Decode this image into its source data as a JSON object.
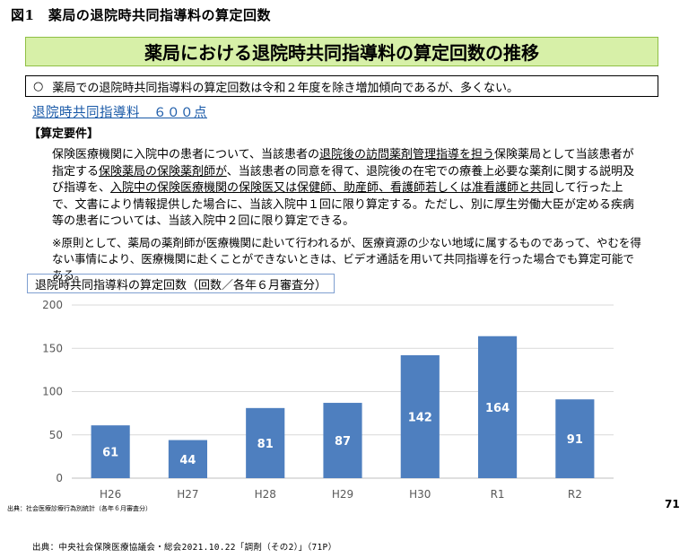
{
  "figure_caption": "図1　薬局の退院時共同指導料の算定回数",
  "slide_title": "薬局における退院時共同指導料の算定回数の推移",
  "summary": {
    "mark": "○",
    "text": "薬局での退院時共同指導料の算定回数は令和２年度を除き増加傾向であるが、多くない。"
  },
  "fee_title": "退院時共同指導料　６００点",
  "requirements": {
    "heading": "【算定要件】",
    "body_segments": [
      {
        "text": "保険医療機関に入院中の患者について、当該患者の",
        "u": false
      },
      {
        "text": "退院後の訪問薬剤管理指導を担う",
        "u": true
      },
      {
        "text": "保険薬局として当該患者が指定する",
        "u": false
      },
      {
        "text": "保険薬局の保険薬剤師が",
        "u": true
      },
      {
        "text": "、当該患者の同意を得て、退院後の在宅での療養上必要な薬剤に関する説明及び指導を、",
        "u": false
      },
      {
        "text": "入院中の保険医療機関の保険医又は保健師、助産師、看護師若しくは准看護師と共同",
        "u": true
      },
      {
        "text": "して行った上で、文書により情報提供した場合に、当該入院中１回に限り算定する。ただし、別に厚生労働大臣が定める疾病等の患者については、当該入院中２回に限り算定できる。",
        "u": false
      }
    ],
    "note": "※原則として、薬局の薬剤師が医療機関に赴いて行われるが、医療資源の少ない地域に属するものであって、やむを得ない事情により、医療機関に赴くことができないときは、ビデオ通話を用いて共同指導を行った場合でも算定可能である。"
  },
  "chart_label": "退院時共同指導料の算定回数（回数／各年６月審査分）",
  "chart_data": {
    "type": "bar",
    "title": "",
    "categories": [
      "H26",
      "H27",
      "H28",
      "H29",
      "H30",
      "R1",
      "R2"
    ],
    "values": [
      61,
      44,
      81,
      87,
      142,
      164,
      91
    ],
    "ylim": [
      0,
      200
    ],
    "yticks": [
      0,
      50,
      100,
      150,
      200
    ],
    "grid": true,
    "bar_color": "#4e7fbf",
    "label_color": "#ffffff"
  },
  "source_small": "出典：社会医療診療行為別統計（各年６月審査分）",
  "page_number": "71",
  "source_bottom": "出典：中央社会保険医療協議会・総会2021.10.22「調剤（その2）」（71P）"
}
